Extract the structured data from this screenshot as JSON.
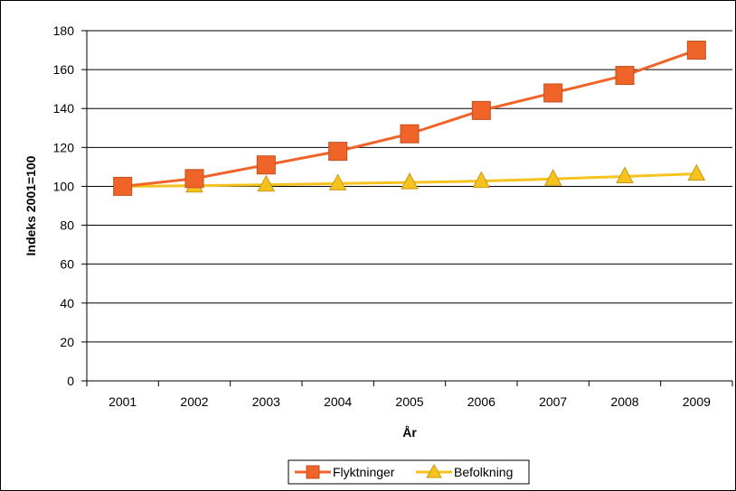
{
  "chart_data": {
    "type": "line",
    "title": "",
    "xlabel": "År",
    "ylabel": "Indeks 2001=100",
    "categories": [
      "2001",
      "2002",
      "2003",
      "2004",
      "2005",
      "2006",
      "2007",
      "2008",
      "2009"
    ],
    "ylim": [
      0,
      180
    ],
    "yticks": [
      0,
      20,
      40,
      60,
      80,
      100,
      120,
      140,
      160,
      180
    ],
    "grid": true,
    "legend_position": "bottom",
    "series": [
      {
        "name": "Flyktninger",
        "values": [
          100,
          104,
          111,
          118,
          127,
          139,
          148,
          157,
          170
        ],
        "color": "#F0642A",
        "marker": "square"
      },
      {
        "name": "Befolkning",
        "values": [
          100,
          100.3,
          100.8,
          101.4,
          102,
          102.7,
          103.8,
          105.1,
          106.4
        ],
        "color": "#F5C21E",
        "marker": "triangle"
      }
    ]
  }
}
